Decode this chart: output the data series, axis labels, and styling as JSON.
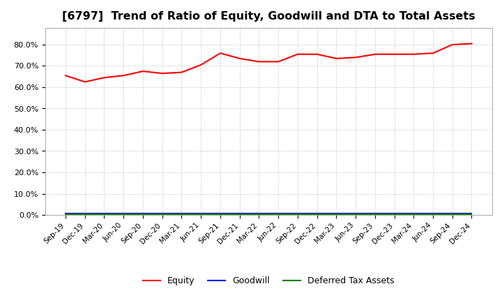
{
  "title": "[6797]  Trend of Ratio of Equity, Goodwill and DTA to Total Assets",
  "x_labels": [
    "Sep-19",
    "Dec-19",
    "Mar-20",
    "Jun-20",
    "Sep-20",
    "Dec-20",
    "Mar-21",
    "Jun-21",
    "Sep-21",
    "Dec-21",
    "Mar-22",
    "Jun-22",
    "Sep-22",
    "Dec-22",
    "Mar-23",
    "Jun-23",
    "Sep-23",
    "Dec-23",
    "Mar-24",
    "Jun-24",
    "Sep-24",
    "Dec-24"
  ],
  "equity": [
    65.5,
    62.5,
    64.5,
    65.5,
    67.5,
    66.5,
    67.0,
    70.5,
    76.0,
    73.5,
    72.0,
    72.0,
    75.5,
    75.5,
    73.5,
    74.0,
    75.5,
    75.5,
    75.5,
    76.0,
    80.0,
    80.5
  ],
  "goodwill": [
    0.8,
    0.8,
    0.8,
    0.8,
    0.8,
    0.8,
    0.8,
    0.8,
    0.8,
    0.8,
    0.8,
    0.8,
    0.8,
    0.8,
    0.8,
    0.8,
    0.8,
    0.8,
    0.8,
    0.8,
    0.8,
    0.8
  ],
  "dta": [
    0.4,
    0.4,
    0.4,
    0.4,
    0.4,
    0.4,
    0.4,
    0.4,
    0.4,
    0.4,
    0.4,
    0.4,
    0.4,
    0.4,
    0.4,
    0.4,
    0.4,
    0.4,
    0.4,
    0.4,
    0.4,
    0.4
  ],
  "equity_color": "#ff0000",
  "goodwill_color": "#0000ff",
  "dta_color": "#008000",
  "ylim": [
    0,
    88
  ],
  "yticks": [
    0,
    10,
    20,
    30,
    40,
    50,
    60,
    70,
    80
  ],
  "background_color": "#ffffff",
  "plot_bg_color": "#ffffff",
  "grid_color": "#bbbbbb",
  "title_fontsize": 11.5,
  "legend_labels": [
    "Equity",
    "Goodwill",
    "Deferred Tax Assets"
  ]
}
